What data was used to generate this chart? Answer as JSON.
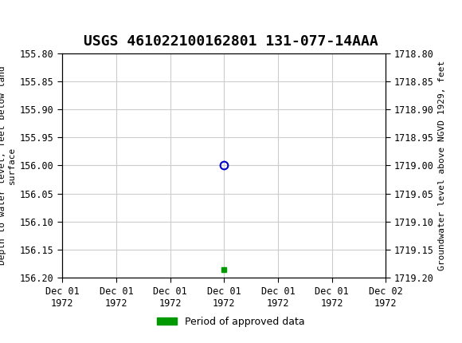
{
  "title": "USGS 461022100162801 131-077-14AAA",
  "title_fontsize": 13,
  "background_color": "#ffffff",
  "header_color": "#1a6b3c",
  "left_ylabel": "Depth to water level, feet below land\nsurface",
  "right_ylabel": "Groundwater level above NGVD 1929, feet",
  "ylim_left": [
    155.8,
    156.2
  ],
  "ylim_right": [
    1718.8,
    1719.2
  ],
  "yticks_left": [
    155.8,
    155.85,
    155.9,
    155.95,
    156.0,
    156.05,
    156.1,
    156.15,
    156.2
  ],
  "yticks_right": [
    1718.8,
    1718.85,
    1718.9,
    1718.95,
    1719.0,
    1719.05,
    1719.1,
    1719.15,
    1719.2
  ],
  "xlim": [
    0,
    6
  ],
  "xtick_labels": [
    "Dec 01\n1972",
    "Dec 01\n1972",
    "Dec 01\n1972",
    "Dec 01\n1972",
    "Dec 01\n1972",
    "Dec 01\n1972",
    "Dec 02\n1972"
  ],
  "xtick_positions": [
    0,
    1,
    2,
    3,
    4,
    5,
    6
  ],
  "data_point_x": 3,
  "data_point_y": 156.0,
  "data_point_color": "#0000cc",
  "green_bar_x": 3,
  "green_bar_y": 156.185,
  "green_bar_color": "#009900",
  "legend_label": "Period of approved data",
  "grid_color": "#cccccc",
  "tick_fontsize": 8.5
}
